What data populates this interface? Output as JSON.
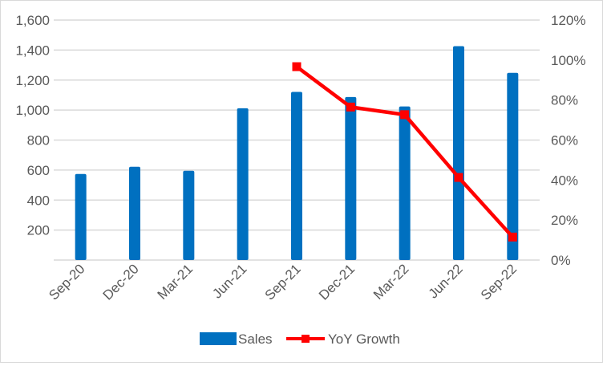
{
  "chart_data": {
    "type": "bar+line",
    "categories": [
      "Sep-20",
      "Dec-20",
      "Mar-21",
      "Jun-21",
      "Sep-21",
      "Dec-21",
      "Mar-22",
      "Jun-22",
      "Sep-22"
    ],
    "series": [
      {
        "name": "Sales",
        "type": "bar",
        "axis": "left",
        "color": "#0070C0",
        "values": [
          574,
          622,
          595,
          1012,
          1121,
          1087,
          1024,
          1426,
          1248
        ]
      },
      {
        "name": "YoY Growth",
        "type": "line",
        "axis": "right",
        "color": "#FF0000",
        "marker": "square",
        "values": [
          null,
          null,
          null,
          null,
          0.967,
          0.765,
          0.727,
          0.413,
          0.115
        ]
      }
    ],
    "y_left": {
      "min": 0,
      "max": 1600,
      "step": 200,
      "ticks": [
        "",
        "200",
        "400",
        "600",
        "800",
        "1,000",
        "1,200",
        "1,400",
        "1,600"
      ]
    },
    "y_right": {
      "min": 0,
      "max": 1.2,
      "step": 0.2,
      "ticks": [
        "0%",
        "20%",
        "40%",
        "60%",
        "80%",
        "100%",
        "120%"
      ]
    },
    "grid": true,
    "legend": "bottom"
  }
}
